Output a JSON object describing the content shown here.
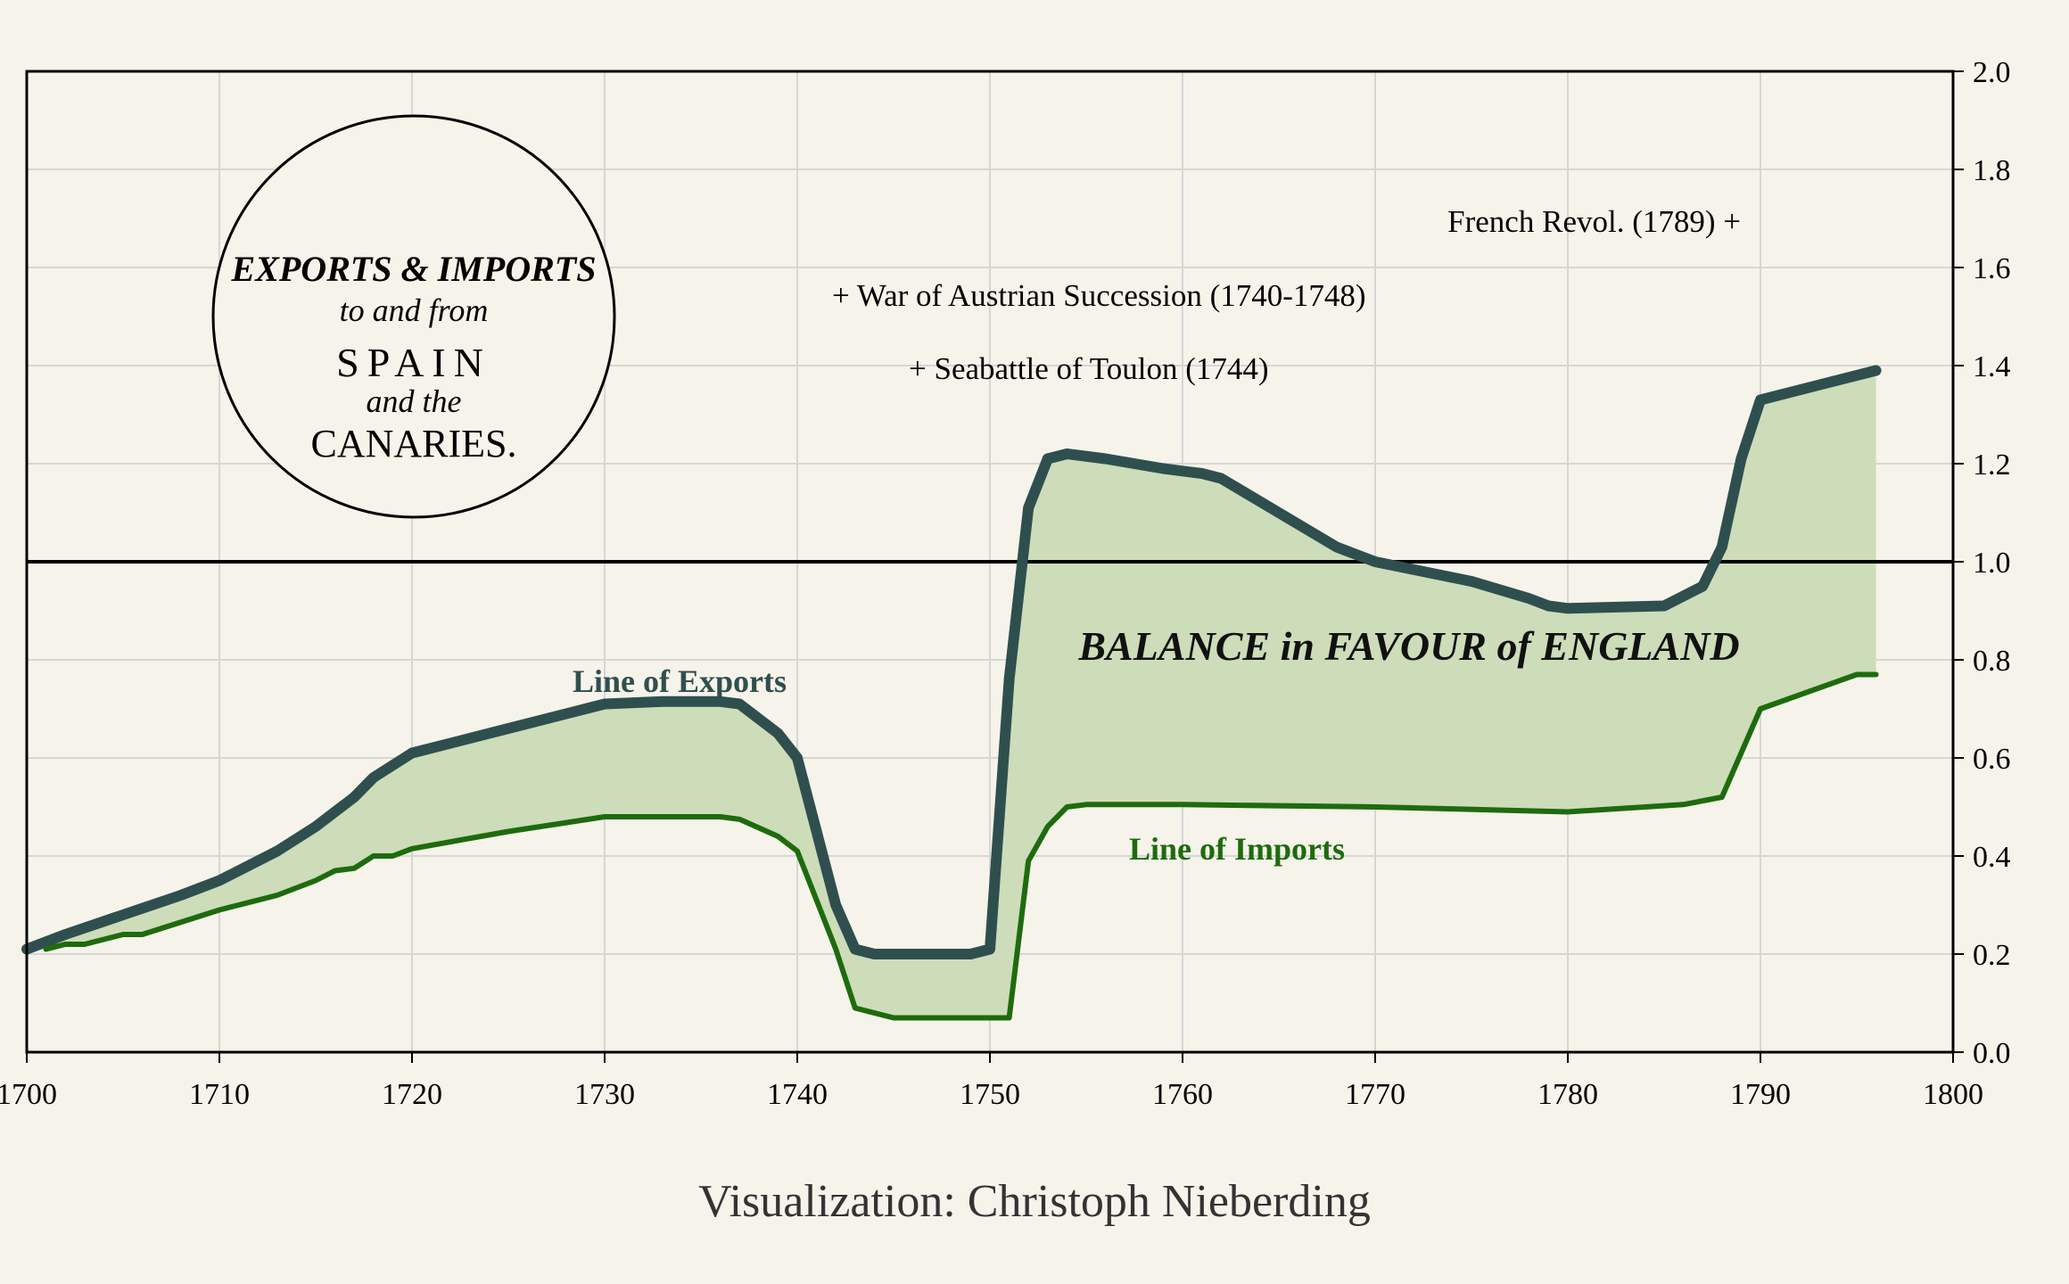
{
  "chart_data": {
    "type": "area",
    "title_circle": {
      "line1": "EXPORTS & IMPORTS",
      "line2": "to and from",
      "line3": "SPAIN",
      "line4": "and the",
      "line5": "CANARIES."
    },
    "x_ticks": [
      "1700",
      "1710",
      "1720",
      "1730",
      "1740",
      "1750",
      "1760",
      "1770",
      "1780",
      "1790",
      "1800"
    ],
    "y_ticks": [
      "0.0",
      "0.2",
      "0.4",
      "0.6",
      "0.8",
      "1.0",
      "1.2",
      "1.4",
      "1.6",
      "1.8",
      "2.0"
    ],
    "xlim": [
      1700,
      1800
    ],
    "ylim": [
      0,
      2
    ],
    "grid": true,
    "reference_line": 1.0,
    "series": [
      {
        "name": "Line of Exports",
        "color": "#2f4f4f",
        "x": [
          1700,
          1702,
          1705,
          1708,
          1710,
          1713,
          1715,
          1717,
          1718,
          1720,
          1725,
          1730,
          1733,
          1736,
          1737,
          1739,
          1740,
          1742,
          1743,
          1744,
          1746,
          1748,
          1749,
          1750,
          1751,
          1752,
          1753,
          1754,
          1756,
          1759,
          1760,
          1761,
          1762,
          1765,
          1768,
          1770,
          1775,
          1778,
          1779,
          1780,
          1785,
          1787,
          1788,
          1789,
          1790,
          1796
        ],
        "values": [
          0.21,
          0.24,
          0.28,
          0.32,
          0.35,
          0.41,
          0.46,
          0.52,
          0.56,
          0.61,
          0.66,
          0.71,
          0.715,
          0.715,
          0.71,
          0.65,
          0.6,
          0.3,
          0.21,
          0.2,
          0.2,
          0.2,
          0.2,
          0.21,
          0.76,
          1.11,
          1.21,
          1.22,
          1.21,
          1.19,
          1.185,
          1.18,
          1.17,
          1.1,
          1.03,
          1.0,
          0.96,
          0.925,
          0.91,
          0.905,
          0.91,
          0.95,
          1.03,
          1.21,
          1.33,
          1.39
        ]
      },
      {
        "name": "Line of Imports",
        "color": "#1e6b0e",
        "x": [
          1701,
          1702,
          1703,
          1705,
          1706,
          1710,
          1713,
          1715,
          1716,
          1717,
          1718,
          1719,
          1720,
          1725,
          1730,
          1733,
          1736,
          1737,
          1739,
          1740,
          1742,
          1743,
          1745,
          1747,
          1749,
          1750,
          1751,
          1752,
          1753,
          1754,
          1755,
          1760,
          1770,
          1780,
          1786,
          1788,
          1790,
          1795,
          1796
        ],
        "values": [
          0.21,
          0.22,
          0.22,
          0.24,
          0.24,
          0.29,
          0.32,
          0.35,
          0.37,
          0.375,
          0.4,
          0.4,
          0.415,
          0.45,
          0.48,
          0.48,
          0.48,
          0.475,
          0.44,
          0.41,
          0.21,
          0.09,
          0.07,
          0.07,
          0.07,
          0.07,
          0.07,
          0.39,
          0.46,
          0.5,
          0.505,
          0.505,
          0.5,
          0.49,
          0.505,
          0.52,
          0.7,
          0.77,
          0.77
        ]
      }
    ],
    "labels": {
      "exports": "Line of Exports",
      "imports": "Line of Imports",
      "balance": "BALANCE in FAVOUR of ENGLAND"
    },
    "annotations": [
      {
        "text": "French Revol. (1789) +",
        "x": 1789
      },
      {
        "text": "+ War of Austrian Succession (1740-1748)",
        "x": 1740
      },
      {
        "text": "+ Seabattle of Toulon (1744)",
        "x": 1744
      }
    ],
    "colors": {
      "fill": "#cddcb9",
      "background": "#f6f3ea",
      "grid": "#d6d6d6"
    }
  },
  "credit": "Visualization: Christoph Nieberding"
}
